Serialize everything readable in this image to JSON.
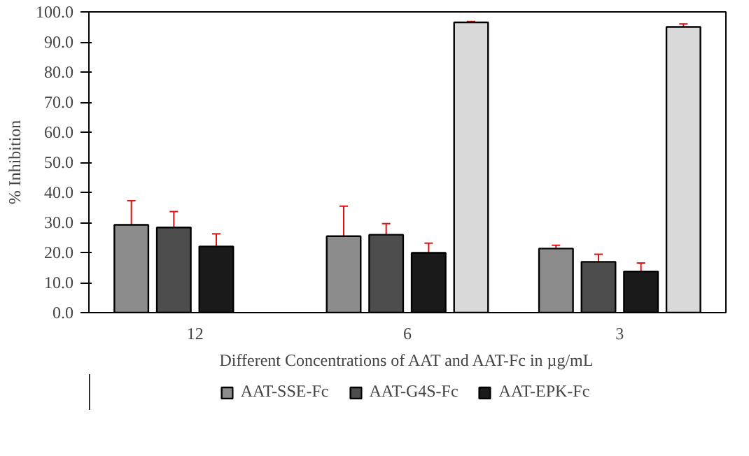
{
  "chart_data": {
    "type": "bar",
    "xlabel": "Different Concentrations of AAT and AAT-Fc in µg/mL",
    "ylabel": "% Inhibition",
    "categories": [
      "12",
      "6",
      "3"
    ],
    "series": [
      {
        "name": "AAT-SSE-Fc",
        "color": "#8c8c8c",
        "values": [
          29.2,
          25.4,
          21.3
        ],
        "errors": [
          8.0,
          10.0,
          1.1
        ]
      },
      {
        "name": "AAT-G4S-Fc",
        "color": "#4d4d4d",
        "values": [
          28.3,
          25.9,
          16.9
        ],
        "errors": [
          5.3,
          3.7,
          2.5
        ]
      },
      {
        "name": "AAT-EPK-Fc",
        "color": "#1a1a1a",
        "values": [
          22.0,
          19.9,
          13.7
        ],
        "errors": [
          4.2,
          3.2,
          2.8
        ]
      },
      {
        "color": "#d9d9d9",
        "values": [
          null,
          96.5,
          95.0
        ],
        "errors": [
          null,
          0.3,
          1.0
        ]
      }
    ],
    "ylim": [
      0,
      100
    ],
    "yticks": [
      {
        "value": 0,
        "label": "0.0"
      },
      {
        "value": 10,
        "label": "10.0"
      },
      {
        "value": 20,
        "label": "20.0"
      },
      {
        "value": 30,
        "label": "30.0"
      },
      {
        "value": 40,
        "label": "40.0"
      },
      {
        "value": 50,
        "label": "50.0"
      },
      {
        "value": 60,
        "label": "60.0"
      },
      {
        "value": 70,
        "label": "70.0"
      },
      {
        "value": 80,
        "label": "80.0"
      },
      {
        "value": 90,
        "label": "90.0"
      },
      {
        "value": 100,
        "label": "100.0"
      }
    ],
    "grid": false,
    "legend": "bottom"
  }
}
